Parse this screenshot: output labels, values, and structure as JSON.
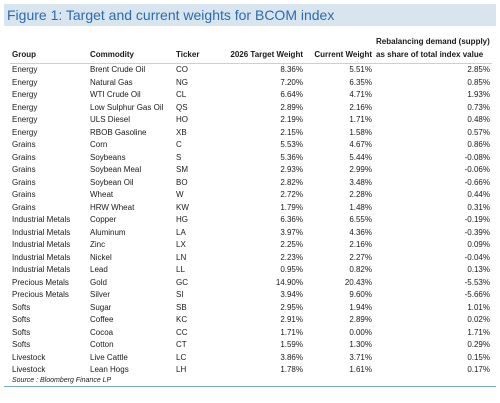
{
  "figure": {
    "title": "Figure 1: Target and current weights for BCOM index",
    "source": "Source : Bloomberg Finance LP"
  },
  "table": {
    "headers": {
      "group": "Group",
      "commodity": "Commodity",
      "ticker": "Ticker",
      "target": "2026 Target Weight",
      "current": "Current Weight",
      "rebalancing_line1": "Rebalancing demand (supply)",
      "rebalancing_line2": "as share of total index value"
    },
    "rows": [
      {
        "group": "Energy",
        "commodity": "Brent Crude Oil",
        "ticker": "CO",
        "target": "8.36%",
        "current": "5.51%",
        "rebalancing": "2.85%"
      },
      {
        "group": "Energy",
        "commodity": "Natural Gas",
        "ticker": "NG",
        "target": "7.20%",
        "current": "6.35%",
        "rebalancing": "0.85%"
      },
      {
        "group": "Energy",
        "commodity": "WTI Crude Oil",
        "ticker": "CL",
        "target": "6.64%",
        "current": "4.71%",
        "rebalancing": "1.93%"
      },
      {
        "group": "Energy",
        "commodity": "Low Sulphur Gas Oil",
        "ticker": "QS",
        "target": "2.89%",
        "current": "2.16%",
        "rebalancing": "0.73%"
      },
      {
        "group": "Energy",
        "commodity": "ULS Diesel",
        "ticker": "HO",
        "target": "2.19%",
        "current": "1.71%",
        "rebalancing": "0.48%"
      },
      {
        "group": "Energy",
        "commodity": "RBOB Gasoline",
        "ticker": "XB",
        "target": "2.15%",
        "current": "1.58%",
        "rebalancing": "0.57%"
      },
      {
        "group": "Grains",
        "commodity": "Corn",
        "ticker": "C",
        "target": "5.53%",
        "current": "4.67%",
        "rebalancing": "0.86%"
      },
      {
        "group": "Grains",
        "commodity": "Soybeans",
        "ticker": "S",
        "target": "5.36%",
        "current": "5.44%",
        "rebalancing": "-0.08%"
      },
      {
        "group": "Grains",
        "commodity": "Soybean Meal",
        "ticker": "SM",
        "target": "2.93%",
        "current": "2.99%",
        "rebalancing": "-0.06%"
      },
      {
        "group": "Grains",
        "commodity": "Soybean Oil",
        "ticker": "BO",
        "target": "2.82%",
        "current": "3.48%",
        "rebalancing": "-0.66%"
      },
      {
        "group": "Grains",
        "commodity": "Wheat",
        "ticker": "W",
        "target": "2.72%",
        "current": "2.28%",
        "rebalancing": "0.44%"
      },
      {
        "group": "Grains",
        "commodity": "HRW Wheat",
        "ticker": "KW",
        "target": "1.79%",
        "current": "1.48%",
        "rebalancing": "0.31%"
      },
      {
        "group": "Industrial Metals",
        "commodity": "Copper",
        "ticker": "HG",
        "target": "6.36%",
        "current": "6.55%",
        "rebalancing": "-0.19%"
      },
      {
        "group": "Industrial Metals",
        "commodity": "Aluminum",
        "ticker": "LA",
        "target": "3.97%",
        "current": "4.36%",
        "rebalancing": "-0.39%"
      },
      {
        "group": "Industrial Metals",
        "commodity": "Zinc",
        "ticker": "LX",
        "target": "2.25%",
        "current": "2.16%",
        "rebalancing": "0.09%"
      },
      {
        "group": "Industrial Metals",
        "commodity": "Nickel",
        "ticker": "LN",
        "target": "2.23%",
        "current": "2.27%",
        "rebalancing": "-0.04%"
      },
      {
        "group": "Industrial Metals",
        "commodity": "Lead",
        "ticker": "LL",
        "target": "0.95%",
        "current": "0.82%",
        "rebalancing": "0.13%"
      },
      {
        "group": "Precious Metals",
        "commodity": "Gold",
        "ticker": "GC",
        "target": "14.90%",
        "current": "20.43%",
        "rebalancing": "-5.53%"
      },
      {
        "group": "Precious Metals",
        "commodity": "Silver",
        "ticker": "SI",
        "target": "3.94%",
        "current": "9.60%",
        "rebalancing": "-5.66%"
      },
      {
        "group": "Softs",
        "commodity": "Sugar",
        "ticker": "SB",
        "target": "2.95%",
        "current": "1.94%",
        "rebalancing": "1.01%"
      },
      {
        "group": "Softs",
        "commodity": "Coffee",
        "ticker": "KC",
        "target": "2.91%",
        "current": "2.89%",
        "rebalancing": "0.02%"
      },
      {
        "group": "Softs",
        "commodity": "Cocoa",
        "ticker": "CC",
        "target": "1.71%",
        "current": "0.00%",
        "rebalancing": "1.71%"
      },
      {
        "group": "Softs",
        "commodity": "Cotton",
        "ticker": "CT",
        "target": "1.59%",
        "current": "1.30%",
        "rebalancing": "0.29%"
      },
      {
        "group": "Livestock",
        "commodity": "Live Cattle",
        "ticker": "LC",
        "target": "3.86%",
        "current": "3.71%",
        "rebalancing": "0.15%"
      },
      {
        "group": "Livestock",
        "commodity": "Lean Hogs",
        "ticker": "LH",
        "target": "1.78%",
        "current": "1.61%",
        "rebalancing": "0.17%"
      }
    ]
  },
  "colors": {
    "title_text": "#2a6cb0",
    "title_background": "#d8e4ee",
    "rule": "#7aa7cf"
  }
}
